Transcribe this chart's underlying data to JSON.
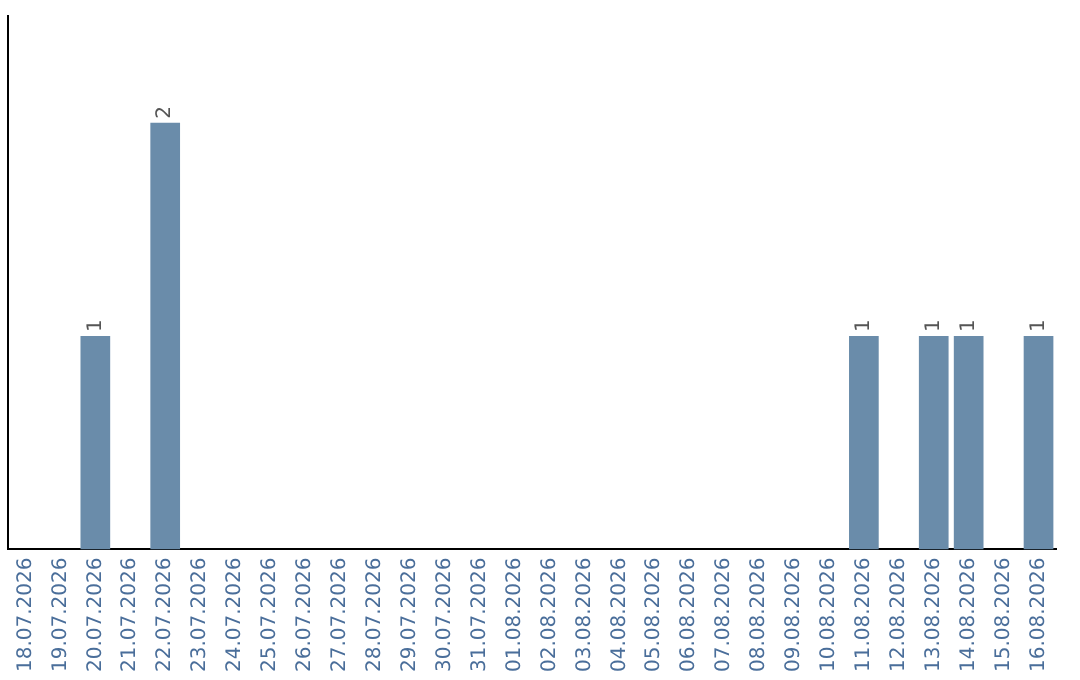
{
  "chart_data": {
    "type": "bar",
    "categories": [
      "18.07.2026",
      "19.07.2026",
      "20.07.2026",
      "21.07.2026",
      "22.07.2026",
      "23.07.2026",
      "24.07.2026",
      "25.07.2026",
      "26.07.2026",
      "27.07.2026",
      "28.07.2026",
      "29.07.2026",
      "30.07.2026",
      "31.07.2026",
      "01.08.2026",
      "02.08.2026",
      "03.08.2026",
      "04.08.2026",
      "05.08.2026",
      "06.08.2026",
      "07.08.2026",
      "08.08.2026",
      "09.08.2026",
      "10.08.2026",
      "11.08.2026",
      "12.08.2026",
      "13.08.2026",
      "14.08.2026",
      "15.08.2026",
      "16.08.2026"
    ],
    "values": [
      0,
      0,
      1,
      0,
      2,
      0,
      0,
      0,
      0,
      0,
      0,
      0,
      0,
      0,
      0,
      0,
      0,
      0,
      0,
      0,
      0,
      0,
      0,
      0,
      1,
      0,
      1,
      1,
      0,
      1
    ],
    "value_labels": [
      null,
      null,
      "1",
      null,
      "2",
      null,
      null,
      null,
      null,
      null,
      null,
      null,
      null,
      null,
      null,
      null,
      null,
      null,
      null,
      null,
      null,
      null,
      null,
      null,
      "1",
      null,
      "1",
      "1",
      null,
      "1"
    ],
    "color": "#6a8caa",
    "grid": false,
    "legend": false,
    "tick_labels": "x"
  }
}
